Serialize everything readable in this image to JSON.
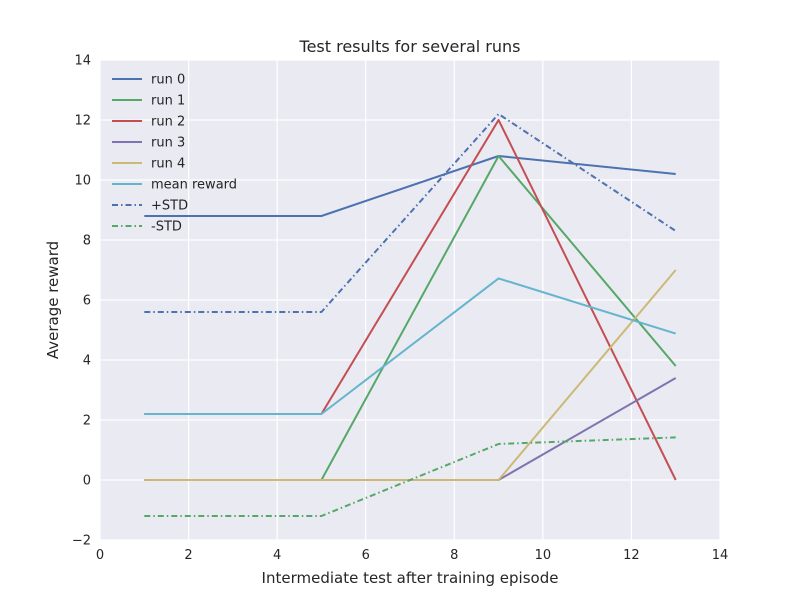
{
  "chart_data": {
    "type": "line",
    "title": "Test results for several runs",
    "xlabel": "Intermediate test after training episode",
    "ylabel": "Average reward",
    "xlim": [
      0,
      14
    ],
    "ylim": [
      -2,
      14
    ],
    "xticks": [
      0,
      2,
      4,
      6,
      8,
      10,
      12,
      14
    ],
    "yticks": [
      -2,
      0,
      2,
      4,
      6,
      8,
      10,
      12,
      14
    ],
    "grid": true,
    "legend_position": "top-left",
    "x": [
      1,
      5,
      9,
      13
    ],
    "series": [
      {
        "name": "run 0",
        "values": [
          8.8,
          8.8,
          10.8,
          10.2
        ],
        "color": "#4c72b0",
        "style": "solid"
      },
      {
        "name": "run 1",
        "values": [
          0,
          0,
          10.8,
          3.8
        ],
        "color": "#55a868",
        "style": "solid"
      },
      {
        "name": "run 2",
        "values": [
          2.2,
          2.2,
          12.0,
          0
        ],
        "color": "#c44e52",
        "style": "solid"
      },
      {
        "name": "run 3",
        "values": [
          0,
          0,
          0,
          3.4
        ],
        "color": "#8172b2",
        "style": "solid"
      },
      {
        "name": "run 4",
        "values": [
          0,
          0,
          0,
          7.0
        ],
        "color": "#ccb974",
        "style": "solid"
      },
      {
        "name": "mean reward",
        "values": [
          2.2,
          2.2,
          6.72,
          4.88
        ],
        "color": "#64b5cd",
        "style": "solid"
      },
      {
        "name": "+STD",
        "values": [
          5.6,
          5.6,
          12.2,
          8.3
        ],
        "color": "#4c72b0",
        "style": "dashdot"
      },
      {
        "name": "-STD",
        "values": [
          -1.2,
          -1.2,
          1.2,
          1.42
        ],
        "color": "#55a868",
        "style": "dashdot"
      }
    ]
  }
}
